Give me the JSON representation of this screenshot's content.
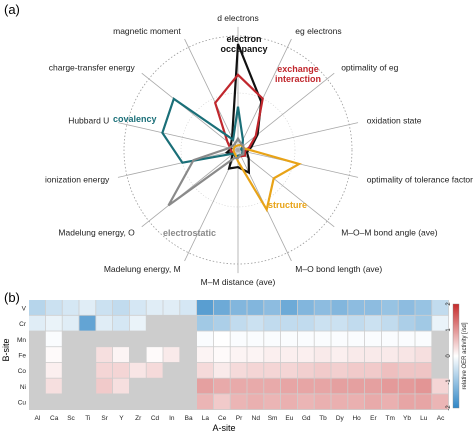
{
  "chart_data": [
    {
      "panel_label": "(a)",
      "type": "radar",
      "axes": [
        "d electrons",
        "eg electrons",
        "optimality of eg",
        "oxidation state",
        "optimality of tolerance factor",
        "M–O–M bond angle (ave)",
        "M–O bond length (ave)",
        "M–M distance (ave)",
        "Madelung energy, M",
        "Madelung energy, O",
        "ionization energy",
        "Hubbard U",
        "charge-transfer energy",
        "magnetic moment"
      ],
      "range": [
        0,
        1
      ],
      "grid": "dotted-circles",
      "series": [
        {
          "name": "electron occupancy",
          "color": "#111111",
          "values": [
            0.93,
            0.47,
            0.22,
            0.12,
            0.08,
            0.12,
            0.22,
            0.15,
            0.18,
            0.06,
            0.1,
            0.06,
            0.08,
            0.12
          ]
        },
        {
          "name": "exchange interaction",
          "color": "#c0272d",
          "values": [
            0.66,
            0.5,
            0.2,
            0.1,
            0.06,
            0.08,
            0.06,
            0.06,
            0.06,
            0.05,
            0.06,
            0.07,
            0.12,
            0.46
          ]
        },
        {
          "name": "covalency",
          "color": "#1a6f78",
          "values": [
            0.38,
            0.1,
            0.05,
            0.03,
            0.04,
            0.05,
            0.05,
            0.05,
            0.06,
            0.05,
            0.5,
            0.68,
            0.72,
            0.1
          ]
        },
        {
          "name": "structure",
          "color": "#e8a317",
          "values": [
            0.04,
            0.05,
            0.05,
            0.06,
            0.55,
            0.4,
            0.58,
            0.1,
            0.05,
            0.04,
            0.04,
            0.04,
            0.04,
            0.04
          ]
        },
        {
          "name": "electrostatic",
          "color": "#8a8a8a",
          "values": [
            0.1,
            0.06,
            0.06,
            0.05,
            0.05,
            0.06,
            0.05,
            0.07,
            0.08,
            0.78,
            0.4,
            0.08,
            0.06,
            0.06
          ]
        }
      ]
    },
    {
      "panel_label": "(b)",
      "type": "heatmap",
      "xlabel": "A-site",
      "ylabel": "B-site",
      "x": [
        "Al",
        "Ca",
        "Sc",
        "Ti",
        "Sr",
        "Y",
        "Zr",
        "Cd",
        "In",
        "Ba",
        "La",
        "Ce",
        "Pr",
        "Nd",
        "Sm",
        "Eu",
        "Gd",
        "Tb",
        "Dy",
        "Ho",
        "Er",
        "Tm",
        "Yb",
        "Lu",
        "Ac"
      ],
      "y": [
        "V",
        "Cr",
        "Mn",
        "Fe",
        "Co",
        "Ni",
        "Cu"
      ],
      "values": [
        [
          -0.7,
          -0.5,
          -0.4,
          -0.3,
          -0.5,
          -0.6,
          -0.4,
          -0.3,
          -0.3,
          -0.4,
          -1.6,
          -1.4,
          -1.2,
          -1.2,
          -1.1,
          -1.4,
          -1.2,
          -1.1,
          -1.2,
          -1.1,
          -1.1,
          -1.0,
          -1.1,
          -1.0,
          -0.6
        ],
        [
          -0.3,
          -0.2,
          -0.3,
          -1.5,
          -0.3,
          -0.4,
          -0.2,
          null,
          null,
          null,
          -0.9,
          -0.8,
          -0.6,
          -0.5,
          -0.6,
          -0.6,
          -0.6,
          -0.5,
          -0.5,
          -0.6,
          -0.5,
          -0.6,
          -0.8,
          -0.9,
          -0.2
        ],
        [
          null,
          -0.05,
          null,
          null,
          null,
          null,
          null,
          null,
          null,
          null,
          -0.05,
          0.0,
          -0.05,
          -0.05,
          -0.05,
          -0.05,
          -0.05,
          -0.05,
          -0.05,
          -0.05,
          -0.05,
          -0.05,
          -0.05,
          -0.05,
          null
        ],
        [
          null,
          0.05,
          null,
          null,
          0.3,
          0.1,
          null,
          0.05,
          0.2,
          null,
          0.1,
          0.05,
          0.1,
          0.1,
          0.15,
          0.15,
          0.15,
          0.2,
          0.15,
          0.2,
          0.2,
          0.2,
          0.25,
          0.3,
          null
        ],
        [
          null,
          0.15,
          null,
          null,
          0.4,
          0.4,
          0.25,
          0.35,
          null,
          null,
          0.35,
          0.2,
          0.35,
          0.4,
          0.4,
          0.4,
          0.45,
          0.5,
          0.45,
          0.5,
          0.5,
          0.6,
          0.55,
          0.55,
          null
        ],
        [
          null,
          0.3,
          null,
          null,
          0.5,
          0.3,
          null,
          null,
          null,
          null,
          0.9,
          0.8,
          0.8,
          0.8,
          0.8,
          0.85,
          0.85,
          0.85,
          0.9,
          0.9,
          0.9,
          0.95,
          0.95,
          1.0,
          0.4
        ],
        [
          null,
          null,
          null,
          null,
          null,
          null,
          null,
          null,
          null,
          null,
          0.7,
          0.5,
          0.7,
          0.75,
          0.7,
          0.75,
          0.7,
          0.75,
          0.75,
          0.75,
          0.8,
          0.75,
          0.85,
          0.85,
          0.7
        ]
      ],
      "colorbar": {
        "label": "relative OER activity [/sd]",
        "range": [
          -2,
          2
        ],
        "ticks": [
          2,
          1,
          0,
          -1,
          -2
        ],
        "low_color": "#2f86c6",
        "mid_color": "#ffffff",
        "high_color": "#c62b2b",
        "missing_color": "#cdcdcd"
      }
    }
  ]
}
